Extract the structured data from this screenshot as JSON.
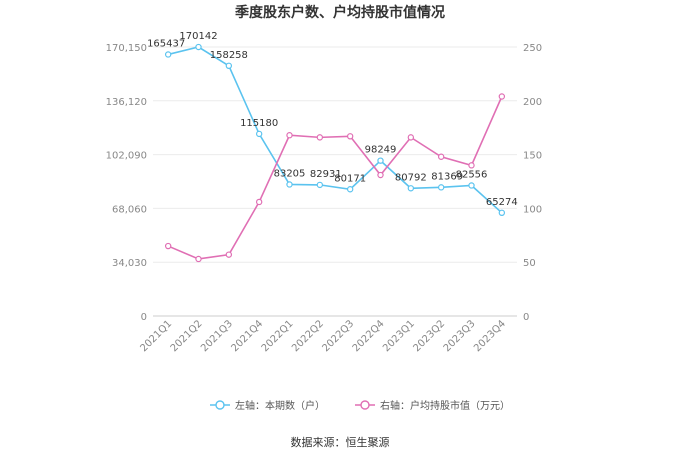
{
  "chart_data": {
    "type": "line",
    "title": "季度股东户数、户均持股市值情况",
    "categories": [
      "2021Q1",
      "2021Q2",
      "2021Q3",
      "2021Q4",
      "2022Q1",
      "2022Q2",
      "2022Q3",
      "2022Q4",
      "2023Q1",
      "2023Q2",
      "2023Q3",
      "2023Q4"
    ],
    "left_axis": {
      "ylim": [
        0,
        170150
      ],
      "ticks": [
        "0",
        "34,030",
        "68,060",
        "102,090",
        "136,120",
        "170,150"
      ]
    },
    "right_axis": {
      "ylim": [
        0,
        250
      ],
      "ticks": [
        "0",
        "50",
        "100",
        "150",
        "200",
        "250"
      ]
    },
    "series": [
      {
        "name": "左轴：本期数（户）",
        "axis": "left",
        "color": "#5bc3ef",
        "values": [
          165437,
          170142,
          158258,
          115180,
          83205,
          82931,
          80171,
          98249,
          80792,
          81369,
          82556,
          65274
        ],
        "labels": [
          "165437",
          "170142",
          "158258",
          "115180",
          "83205",
          "82931",
          "80171",
          "98249",
          "80792",
          "81369",
          "82556",
          "65274"
        ]
      },
      {
        "name": "右轴：户均持股市值（万元）",
        "axis": "right",
        "color": "#e06fb4",
        "values": [
          65,
          53,
          57,
          106,
          168,
          166,
          167,
          131,
          166,
          148,
          140,
          204
        ]
      }
    ],
    "grid": true,
    "legend_position": "bottom"
  },
  "source_text": "数据来源：恒生聚源"
}
